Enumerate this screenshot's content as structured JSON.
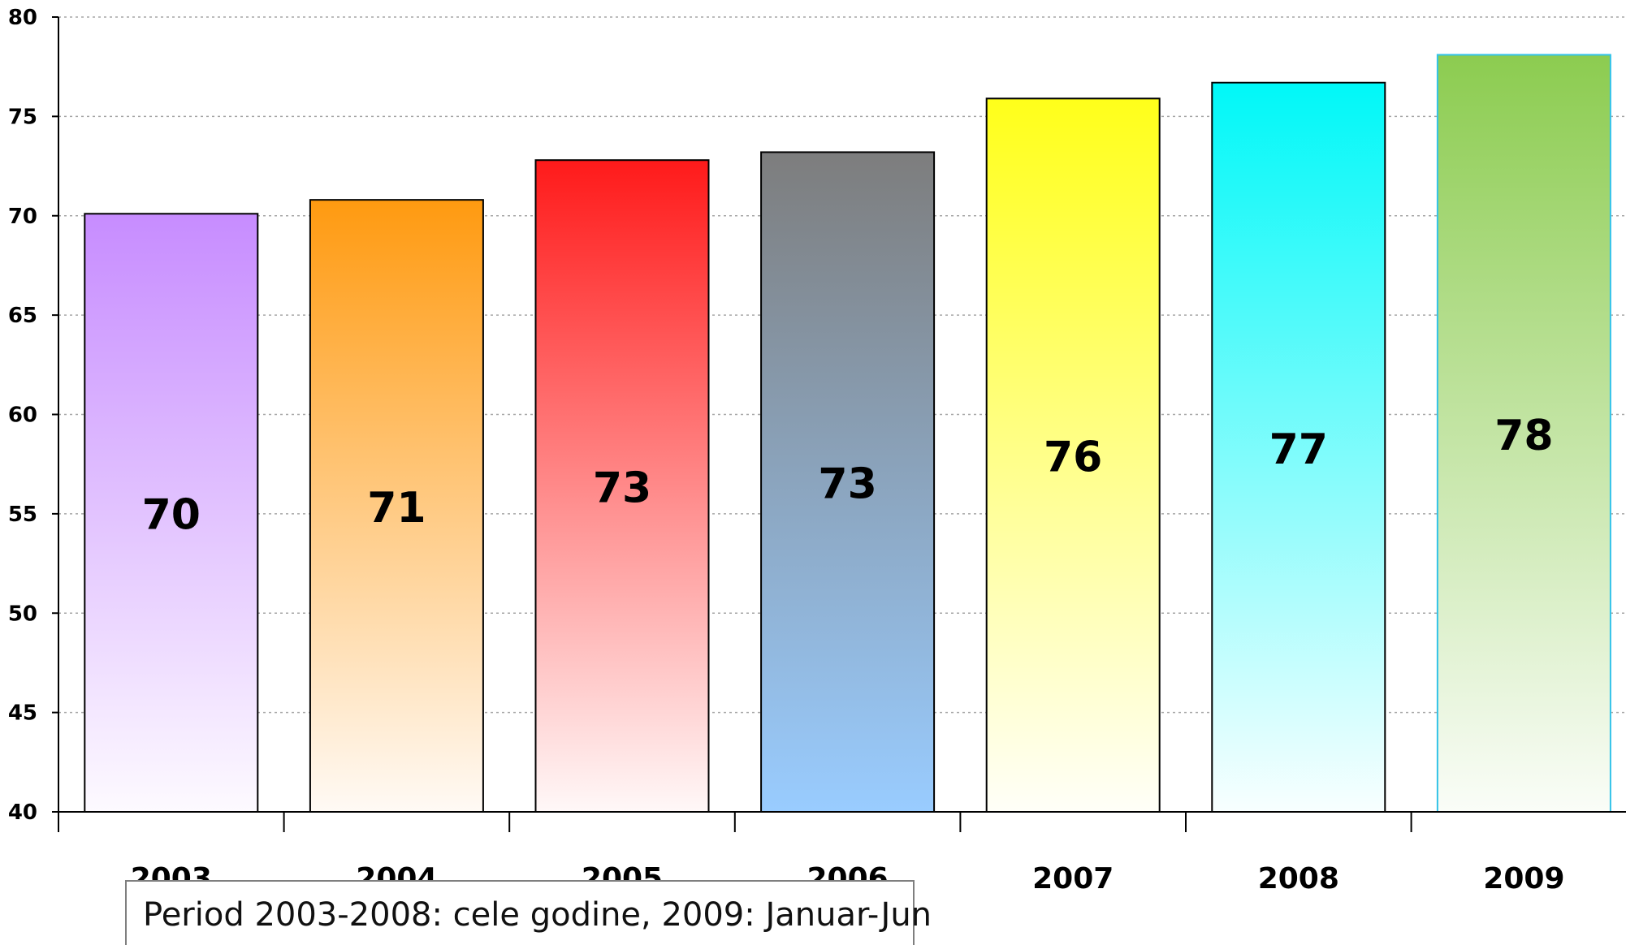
{
  "chart_data": {
    "type": "bar",
    "categories": [
      "2003",
      "2004",
      "2005",
      "2006",
      "2007",
      "2008",
      "2009"
    ],
    "values": [
      70.1,
      70.8,
      72.8,
      73.2,
      75.9,
      76.7,
      78.1
    ],
    "value_labels": [
      "70",
      "71",
      "73",
      "73",
      "76",
      "77",
      "78"
    ],
    "title": "",
    "xlabel": "",
    "ylabel": "",
    "ylim": [
      40,
      80
    ],
    "yticks": [
      "40",
      "45",
      "50",
      "55",
      "60",
      "65",
      "70",
      "75",
      "80"
    ],
    "grid": "horizontal dotted",
    "legend": "none",
    "bar_colors": [
      {
        "top": "#c78cff",
        "bottom": "#fdfaff",
        "border": "#000000"
      },
      {
        "top": "#ff9a10",
        "bottom": "#fffaf5",
        "border": "#000000"
      },
      {
        "top": "#ff1a1a",
        "bottom": "#fff8f8",
        "border": "#000000"
      },
      {
        "top": "#7d7d7d",
        "bottom": "#99ccff",
        "border": "#000000"
      },
      {
        "top": "#ffff1a",
        "bottom": "#fffff8",
        "border": "#000000"
      },
      {
        "top": "#00f8f8",
        "bottom": "#f8ffff",
        "border": "#000000"
      },
      {
        "top": "#8ccc50",
        "bottom": "#fafdf8",
        "border": "#33c3e8"
      }
    ]
  },
  "note": "Period 2003-2008: cele godine, 2009: Januar-Jun"
}
